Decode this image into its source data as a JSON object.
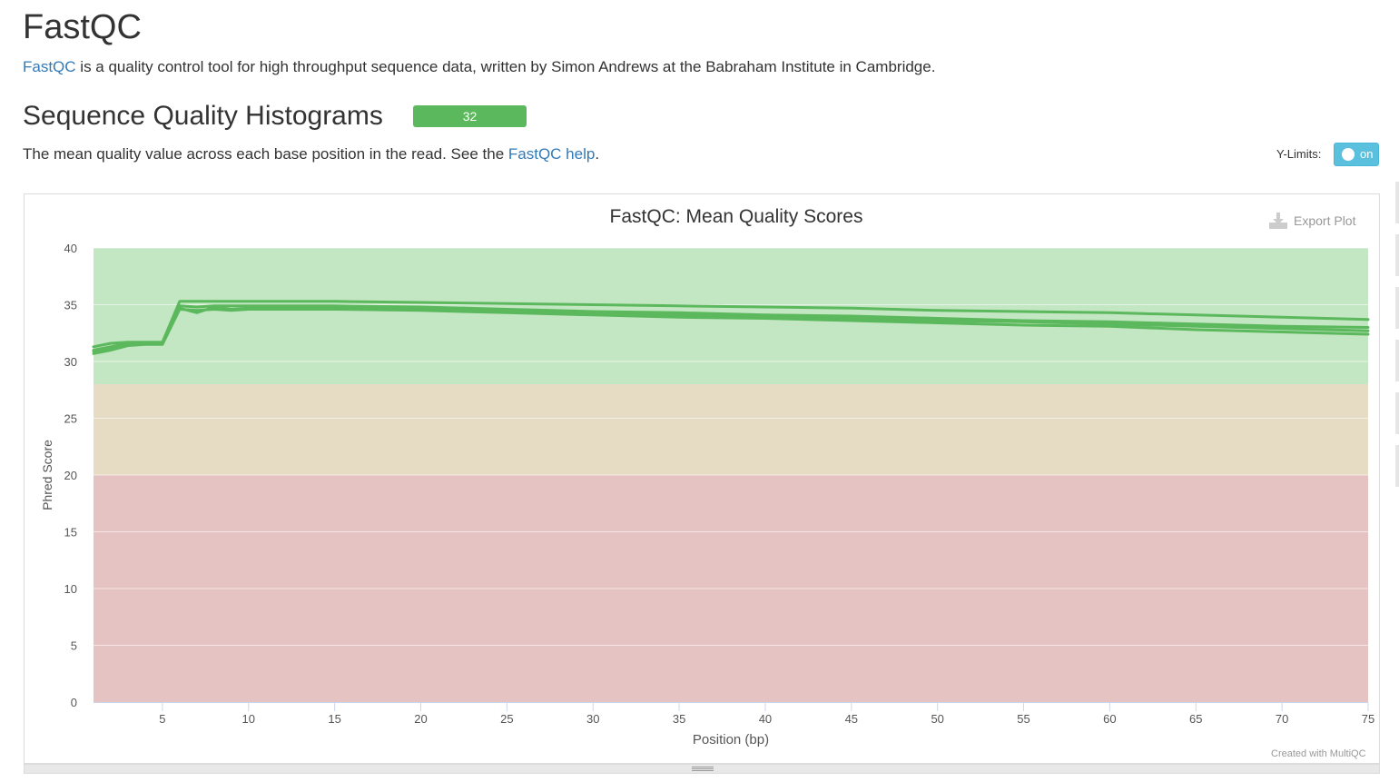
{
  "header": {
    "title": "FastQC",
    "intro_link": "FastQC",
    "intro_text": " is a quality control tool for high throughput sequence data, written by Simon Andrews at the Babraham Institute in Cambridge."
  },
  "section": {
    "title": "Sequence Quality Histograms",
    "status_count": "32",
    "status_color": "#5cb85c",
    "description_text": "The mean quality value across each base position in the read. See the ",
    "description_link": "FastQC help",
    "description_end": "."
  },
  "controls": {
    "ylimits_label": "Y-Limits:",
    "ylimits_state": "on"
  },
  "plot": {
    "export_label": "Export Plot",
    "export_icon": "download-icon",
    "credit": "Created with MultiQC"
  },
  "chart_data": {
    "type": "line",
    "title": "FastQC: Mean Quality Scores",
    "xlabel": "Position (bp)",
    "ylabel": "Phred Score",
    "xlim": [
      1,
      75
    ],
    "ylim": [
      0,
      40
    ],
    "x_ticks": [
      5,
      10,
      15,
      20,
      25,
      30,
      35,
      40,
      45,
      50,
      55,
      60,
      65,
      70,
      75
    ],
    "y_ticks": [
      0,
      5,
      10,
      15,
      20,
      25,
      30,
      35,
      40
    ],
    "grid": true,
    "legend": "none",
    "line_color": "#5cb85c",
    "bands": [
      {
        "from": 28,
        "to": 40,
        "color": "#c3e6c3"
      },
      {
        "from": 20,
        "to": 28,
        "color": "#e6dcc3"
      },
      {
        "from": 0,
        "to": 20,
        "color": "#e6c3c3"
      }
    ],
    "x": [
      1,
      2,
      3,
      4,
      5,
      6,
      7,
      8,
      9,
      10,
      15,
      20,
      25,
      30,
      35,
      40,
      45,
      50,
      55,
      60,
      65,
      70,
      75
    ],
    "series": [
      {
        "values": [
          31.3,
          31.6,
          31.7,
          31.7,
          31.7,
          35.3,
          35.3,
          35.3,
          35.3,
          35.3,
          35.3,
          35.2,
          35.1,
          35.0,
          34.9,
          34.8,
          34.7,
          34.5,
          34.4,
          34.3,
          34.1,
          33.9,
          33.7
        ]
      },
      {
        "values": [
          30.9,
          31.2,
          31.5,
          31.6,
          31.6,
          34.7,
          34.3,
          34.8,
          34.6,
          34.7,
          34.7,
          34.6,
          34.4,
          34.2,
          34.1,
          33.9,
          33.8,
          33.6,
          33.5,
          33.3,
          33.1,
          32.9,
          32.7
        ]
      },
      {
        "values": [
          30.7,
          31.0,
          31.4,
          31.5,
          31.5,
          34.6,
          34.5,
          34.6,
          34.5,
          34.6,
          34.6,
          34.5,
          34.3,
          34.1,
          33.9,
          33.8,
          33.6,
          33.4,
          33.2,
          33.1,
          32.8,
          32.6,
          32.4
        ]
      },
      {
        "values": [
          31.0,
          31.3,
          31.6,
          31.6,
          31.6,
          34.9,
          34.8,
          34.9,
          34.9,
          34.9,
          34.9,
          34.8,
          34.6,
          34.4,
          34.3,
          34.1,
          34.0,
          33.8,
          33.6,
          33.5,
          33.3,
          33.1,
          33.0
        ]
      }
    ]
  }
}
